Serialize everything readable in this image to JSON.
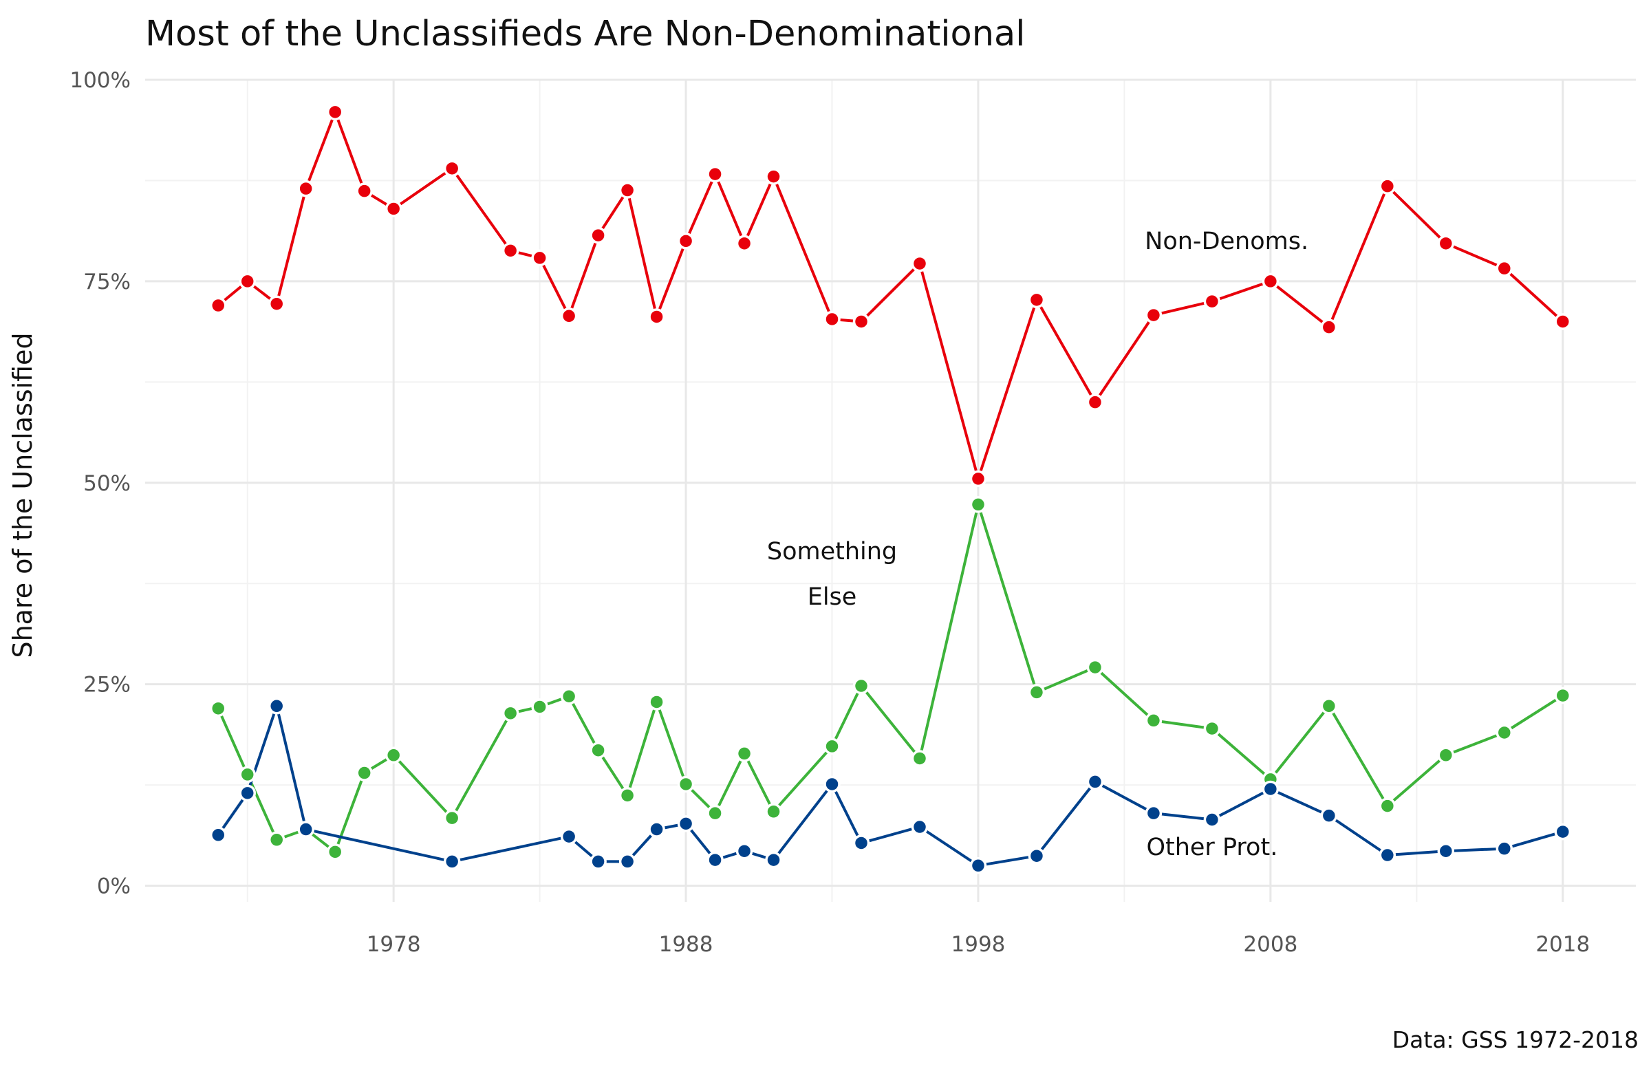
{
  "chart_data": {
    "type": "line",
    "title": "Most of the Unclassifieds Are Non-Denominational",
    "xlabel": "",
    "ylabel": "Share of the Unclassified",
    "caption": "Data: GSS 1972-2018",
    "xlim": [
      1969.5,
      2020.5
    ],
    "ylim": [
      -0.02,
      1.0
    ],
    "x_ticks": [
      1978,
      1988,
      1998,
      2008,
      2018
    ],
    "x_tick_labels": [
      "1978",
      "1988",
      "1998",
      "2008",
      "2018"
    ],
    "y_ticks": [
      0,
      0.25,
      0.5,
      0.75,
      1.0
    ],
    "y_tick_labels": [
      "0%",
      "25%",
      "50%",
      "75%",
      "100%"
    ],
    "grid": true,
    "legend": "none",
    "x": [
      1972,
      1973,
      1974,
      1975,
      1976,
      1977,
      1978,
      1980,
      1982,
      1983,
      1984,
      1985,
      1986,
      1987,
      1988,
      1989,
      1990,
      1991,
      1993,
      1994,
      1996,
      1998,
      2000,
      2002,
      2004,
      2006,
      2008,
      2010,
      2012,
      2014,
      2016,
      2018
    ],
    "series": [
      {
        "key": "nondenom",
        "color": "#e8000b",
        "values": [
          0.72,
          0.75,
          0.722,
          0.865,
          0.96,
          0.862,
          0.84,
          0.89,
          0.788,
          0.779,
          0.707,
          0.807,
          0.863,
          0.706,
          0.8,
          0.883,
          0.797,
          0.88,
          0.703,
          0.7,
          0.772,
          0.505,
          0.727,
          0.6,
          0.708,
          0.725,
          0.75,
          0.693,
          0.868,
          0.797,
          0.766,
          0.7
        ]
      },
      {
        "key": "something_else",
        "color": "#3db33a",
        "values": [
          0.22,
          0.138,
          0.057,
          0.07,
          0.042,
          0.14,
          0.162,
          0.084,
          0.214,
          0.222,
          0.235,
          0.168,
          0.112,
          0.228,
          0.126,
          0.09,
          0.164,
          0.092,
          0.173,
          0.248,
          0.158,
          0.473,
          0.24,
          0.271,
          0.205,
          0.195,
          0.132,
          0.223,
          0.099,
          0.162,
          0.19,
          0.236
        ]
      },
      {
        "key": "other_prot",
        "color": "#00418c",
        "x": [
          1972,
          1973,
          1974,
          1975,
          1980,
          1984,
          1985,
          1986,
          1987,
          1988,
          1989,
          1990,
          1991,
          1993,
          1994,
          1996,
          1998,
          2000,
          2002,
          2004,
          2006,
          2008,
          2010,
          2012,
          2014,
          2016,
          2018
        ],
        "values": [
          0.063,
          0.115,
          0.223,
          0.07,
          0.03,
          0.061,
          0.03,
          0.03,
          0.07,
          0.077,
          0.032,
          0.043,
          0.032,
          0.126,
          0.053,
          0.073,
          0.025,
          0.037,
          0.129,
          0.09,
          0.082,
          0.12,
          0.087,
          0.038,
          0.043,
          0.046,
          0.067
        ]
      }
    ],
    "annotations": [
      {
        "lines": [
          "Non-Denoms."
        ],
        "x": 2006.5,
        "y": 0.79
      },
      {
        "lines": [
          "Something",
          "Else"
        ],
        "x": 1993,
        "y": 0.405
      },
      {
        "lines": [
          "Other Prot."
        ],
        "x": 2006,
        "y": 0.038
      }
    ]
  }
}
